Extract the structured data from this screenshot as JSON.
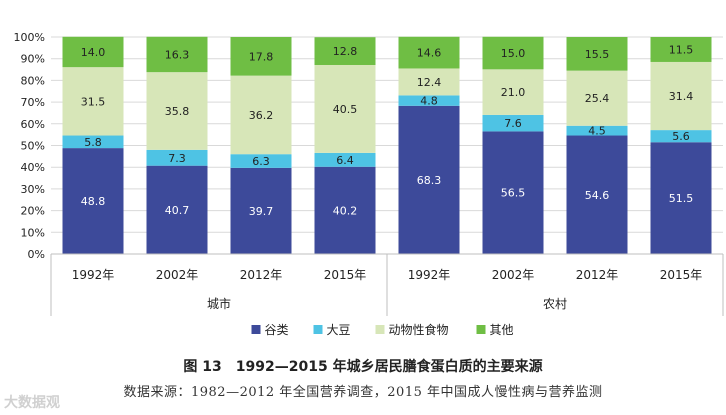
{
  "chart_data": {
    "type": "bar",
    "stacked": true,
    "percent": true,
    "ylim": [
      0,
      100
    ],
    "yticks": [
      "0%",
      "10%",
      "20%",
      "30%",
      "40%",
      "50%",
      "60%",
      "70%",
      "80%",
      "90%",
      "100%"
    ],
    "categories": [
      "1992年",
      "2002年",
      "2012年",
      "2015年",
      "1992年",
      "2002年",
      "2012年",
      "2015年"
    ],
    "groups": [
      {
        "label": "城市",
        "categories": [
          0,
          1,
          2,
          3
        ]
      },
      {
        "label": "农村",
        "categories": [
          4,
          5,
          6,
          7
        ]
      }
    ],
    "series": [
      {
        "name": "谷类",
        "color": "#3d4a9a",
        "values": [
          48.8,
          40.7,
          39.7,
          40.2,
          68.3,
          56.5,
          54.6,
          51.5
        ]
      },
      {
        "name": "大豆",
        "color": "#4ec3e4",
        "values": [
          5.8,
          7.3,
          6.3,
          6.4,
          4.8,
          7.6,
          4.5,
          5.6
        ]
      },
      {
        "name": "动物性食物",
        "color": "#d7e6b8",
        "values": [
          31.5,
          35.8,
          36.2,
          40.5,
          12.4,
          21.0,
          25.4,
          31.4
        ]
      },
      {
        "name": "其他",
        "color": "#6fbe44",
        "values": [
          14.0,
          16.3,
          17.8,
          12.8,
          14.6,
          15.0,
          15.5,
          11.5
        ]
      }
    ],
    "legend_position": "bottom",
    "title": "图 13　1992—2015 年城乡居民膳食蛋白质的主要来源",
    "source": "数据来源：1982—2012 年全国营养调查，2015 年中国成人慢性病与营养监测"
  },
  "watermark": "大数据观"
}
